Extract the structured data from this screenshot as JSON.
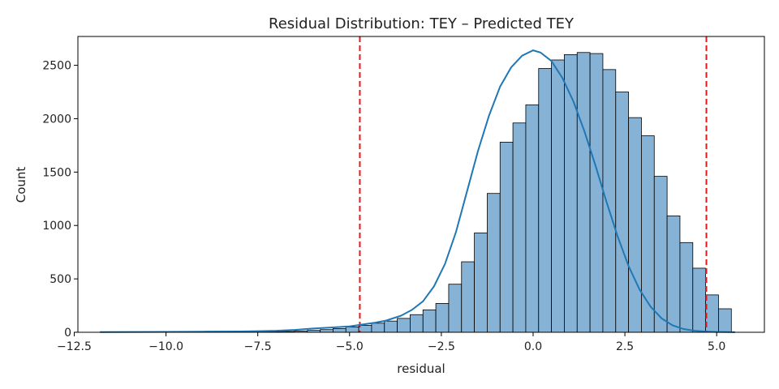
{
  "chart_data": {
    "type": "histogram",
    "title": "Residual Distribution: TEY – Predicted TEY",
    "xlabel": "residual",
    "ylabel": "Count",
    "xlim": [
      -12.4,
      6.3
    ],
    "ylim": [
      0,
      2770
    ],
    "xticks": [
      -12.5,
      -10.0,
      -7.5,
      -5.0,
      -2.5,
      0.0,
      2.5,
      5.0
    ],
    "xtick_labels": [
      "−12.5",
      "−10.0",
      "−7.5",
      "−5.0",
      "−2.5",
      "0.0",
      "2.5",
      "5.0"
    ],
    "yticks": [
      0,
      500,
      1000,
      1500,
      2000,
      2500
    ],
    "ytick_labels": [
      "0",
      "500",
      "1000",
      "1500",
      "2000",
      "2500"
    ],
    "bar_color": "#86b3d5",
    "bar_edge_color": "#000000",
    "kde_color": "#1f77b4",
    "bins": {
      "left_edges": [
        -11.75,
        -11.4,
        -11.05,
        -10.7,
        -10.35,
        -10.0,
        -9.65,
        -9.3,
        -8.95,
        -8.6,
        -8.25,
        -7.9,
        -7.55,
        -7.2,
        -6.85,
        -6.5,
        -6.15,
        -5.8,
        -5.45,
        -5.1,
        -4.75,
        -4.4,
        -4.05,
        -3.7,
        -3.35,
        -3.0,
        -2.65,
        -2.3,
        -1.95,
        -1.6,
        -1.25,
        -0.9,
        -0.55,
        -0.2,
        0.15,
        0.5,
        0.85,
        1.2,
        1.55,
        1.9,
        2.25,
        2.6,
        2.95,
        3.3,
        3.65,
        4.0,
        4.35,
        4.7,
        5.05
      ],
      "width": 0.35,
      "counts": [
        1,
        0,
        1,
        0,
        1,
        1,
        2,
        2,
        3,
        3,
        4,
        5,
        5,
        6,
        8,
        12,
        18,
        25,
        35,
        50,
        65,
        85,
        105,
        130,
        165,
        210,
        270,
        450,
        660,
        930,
        1300,
        1780,
        1960,
        2130,
        2470,
        2550,
        2600,
        2620,
        2610,
        2460,
        2250,
        2010,
        1840,
        1460,
        1090,
        840,
        600,
        350,
        220
      ]
    },
    "kde": {
      "x": [
        -11.8,
        -11.0,
        -10.0,
        -9.0,
        -8.0,
        -7.5,
        -7.0,
        -6.5,
        -6.0,
        -5.5,
        -5.0,
        -4.7,
        -4.3,
        -4.0,
        -3.6,
        -3.3,
        -3.0,
        -2.7,
        -2.4,
        -2.1,
        -1.8,
        -1.5,
        -1.2,
        -0.9,
        -0.6,
        -0.3,
        0.0,
        0.2,
        0.5,
        0.8,
        1.1,
        1.4,
        1.7,
        2.0,
        2.3,
        2.6,
        2.9,
        3.2,
        3.5,
        3.8,
        4.1,
        4.4,
        4.7,
        5.0,
        5.5
      ],
      "y": [
        2,
        3,
        4,
        6,
        8,
        10,
        14,
        22,
        35,
        45,
        55,
        70,
        90,
        110,
        155,
        210,
        290,
        430,
        640,
        940,
        1320,
        1700,
        2030,
        2300,
        2480,
        2590,
        2640,
        2620,
        2540,
        2380,
        2160,
        1880,
        1560,
        1220,
        900,
        620,
        400,
        240,
        130,
        65,
        30,
        14,
        7,
        3,
        1
      ]
    },
    "threshold_lines": {
      "x": [
        -4.72,
        4.72
      ],
      "color": "#e31a1c",
      "style": "dashed"
    }
  }
}
